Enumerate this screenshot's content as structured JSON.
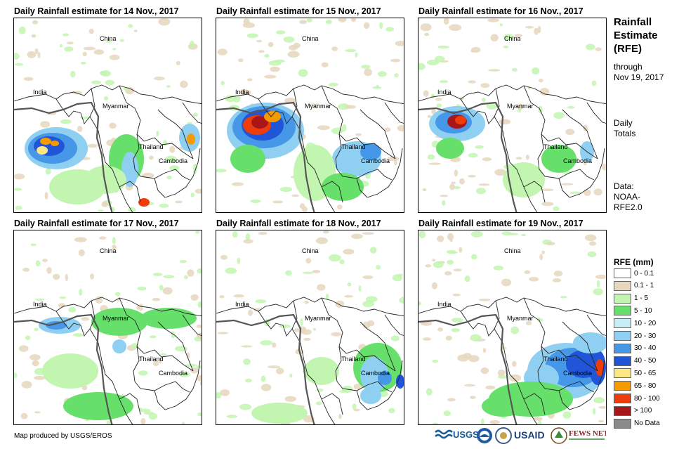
{
  "panels": [
    {
      "title": "Daily Rainfall estimate for 14 Nov., 2017",
      "day": "14"
    },
    {
      "title": "Daily Rainfall estimate for 15 Nov., 2017",
      "day": "15"
    },
    {
      "title": "Daily Rainfall estimate for 16 Nov., 2017",
      "day": "16"
    },
    {
      "title": "Daily Rainfall estimate for 17 Nov., 2017",
      "day": "17"
    },
    {
      "title": "Daily Rainfall estimate for 18 Nov., 2017",
      "day": "18"
    },
    {
      "title": "Daily Rainfall estimate for 19 Nov., 2017",
      "day": "19"
    }
  ],
  "map_labels": {
    "china": "China",
    "india": "India",
    "myanmar": "Myanmar",
    "thailand": "Thailand",
    "cambodia": "Cambodia"
  },
  "sidebar": {
    "title_line1": "Rainfall",
    "title_line2": "Estimate",
    "title_line3": "(RFE)",
    "through": "through",
    "date": "Nov 19, 2017",
    "daily": "Daily",
    "totals": "Totals",
    "data_label": "Data:",
    "source_line1": "NOAA-",
    "source_line2": "RFE2.0"
  },
  "legend": {
    "title": "RFE (mm)",
    "classes": [
      {
        "label": "0 - 0.1",
        "color": "#ffffff"
      },
      {
        "label": "0.1 - 1",
        "color": "#e6d7bd"
      },
      {
        "label": "1 - 5",
        "color": "#c2f5b0"
      },
      {
        "label": "5 - 10",
        "color": "#66e06a"
      },
      {
        "label": "10 - 20",
        "color": "#c5eef7"
      },
      {
        "label": "20 - 30",
        "color": "#8fd0f2"
      },
      {
        "label": "30 - 40",
        "color": "#4697e8"
      },
      {
        "label": "40 - 50",
        "color": "#1f55d6"
      },
      {
        "label": "50 - 65",
        "color": "#fde684"
      },
      {
        "label": "65 - 80",
        "color": "#f59a00"
      },
      {
        "label": "80 - 100",
        "color": "#ee3d0a"
      },
      {
        "label": "> 100",
        "color": "#a8161a"
      },
      {
        "label": "No Data",
        "color": "#8a8a8a"
      }
    ]
  },
  "footer": {
    "credit": "Map produced by USGS/EROS",
    "logo_usgs": "USGS",
    "logo_usaid": "USAID",
    "logo_fews": "FEWS NET"
  }
}
